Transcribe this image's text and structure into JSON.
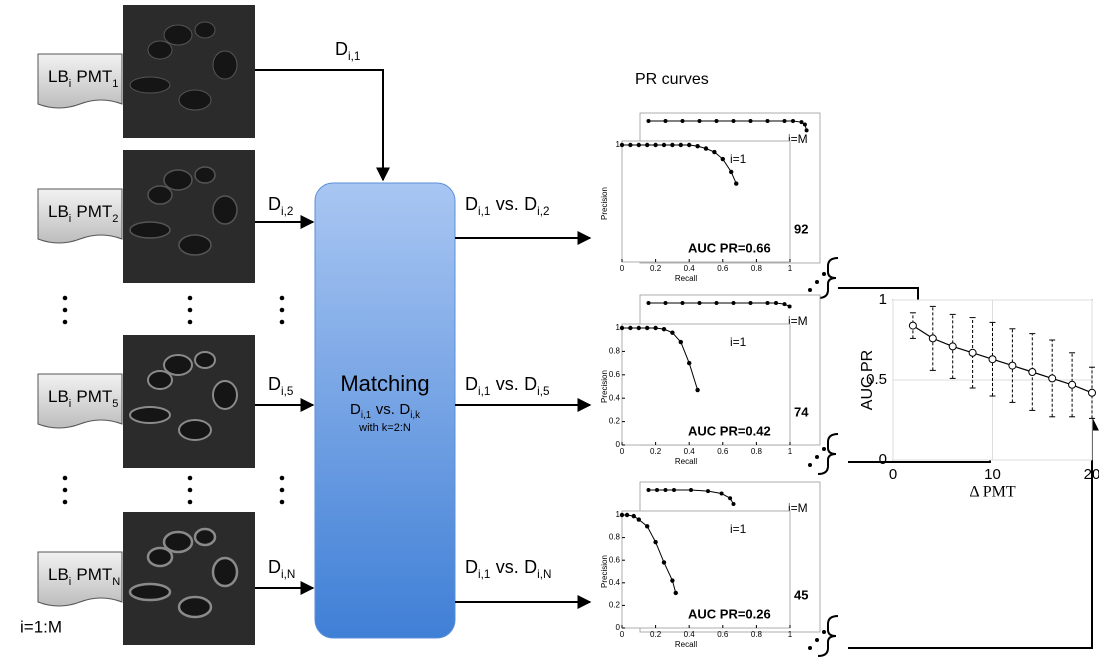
{
  "inputs": [
    {
      "label": "LB",
      "label_sub": "i",
      "pmt": "PMT",
      "pmt_sub": "1",
      "d": "D",
      "d_sub": "i,1"
    },
    {
      "label": "LB",
      "label_sub": "i",
      "pmt": "PMT",
      "pmt_sub": "2",
      "d": "D",
      "d_sub": "i,2"
    },
    {
      "label": "LB",
      "label_sub": "i",
      "pmt": "PMT",
      "pmt_sub": "5",
      "d": "D",
      "d_sub": "i,5"
    },
    {
      "label": "LB",
      "label_sub": "i",
      "pmt": "PMT",
      "pmt_sub": "N",
      "d": "D",
      "d_sub": "i,N"
    }
  ],
  "loop": "i=1:M",
  "matching": {
    "title": "Matching",
    "a": "D",
    "a_sub": "i,1",
    "vs": "vs.",
    "b": "D",
    "b_sub": "i,k",
    "note": "with k=2:N"
  },
  "comparisons": [
    {
      "a": "D",
      "a_sub": "i,1",
      "vs": "vs.",
      "b": "D",
      "b_sub": "i,2"
    },
    {
      "a": "D",
      "a_sub": "i,1",
      "vs": "vs.",
      "b": "D",
      "b_sub": "i,5"
    },
    {
      "a": "D",
      "a_sub": "i,1",
      "vs": "vs.",
      "b": "D",
      "b_sub": "i,N"
    }
  ],
  "pr_title": "PR curves",
  "pr_panels": [
    {
      "back_label": "i=M",
      "front_label": "i=1",
      "auc": "AUC PR=0.66",
      "count": "92",
      "xlabel": "Recall",
      "ylabel": "Precision",
      "xlim": [
        0,
        1
      ],
      "ylim": [
        0,
        1
      ],
      "xticks": [
        0,
        0.2,
        0.4,
        0.6,
        0.8,
        1
      ],
      "yticks": [
        1
      ],
      "recall": [
        0,
        0.05,
        0.1,
        0.15,
        0.2,
        0.25,
        0.3,
        0.35,
        0.4,
        0.45,
        0.5,
        0.55,
        0.6,
        0.65,
        0.68
      ],
      "precision": [
        1,
        1,
        1,
        1,
        1,
        1,
        1,
        1,
        1,
        0.99,
        0.97,
        0.94,
        0.88,
        0.77,
        0.67
      ],
      "back_recall": [
        0.05,
        0.15,
        0.25,
        0.35,
        0.45,
        0.55,
        0.65,
        0.75,
        0.85,
        0.9,
        0.95,
        0.97,
        0.98
      ],
      "back_precision": [
        1,
        1,
        1,
        1,
        1,
        1,
        1,
        1,
        1,
        1,
        0.99,
        0.97,
        0.92
      ]
    },
    {
      "back_label": "i=M",
      "front_label": "i=1",
      "auc": "AUC PR=0.42",
      "count": "74",
      "xlabel": "Recall",
      "ylabel": "Precision",
      "xlim": [
        0,
        1
      ],
      "ylim": [
        0,
        1
      ],
      "xticks": [
        0,
        0.2,
        0.4,
        0.6,
        0.8,
        1
      ],
      "yticks": [
        0,
        0.2,
        0.4,
        0.6,
        0.8,
        1
      ],
      "recall": [
        0,
        0.05,
        0.1,
        0.15,
        0.2,
        0.25,
        0.3,
        0.35,
        0.4,
        0.45
      ],
      "precision": [
        1,
        1,
        1,
        1,
        1,
        0.99,
        0.96,
        0.88,
        0.7,
        0.47
      ],
      "back_recall": [
        0.05,
        0.15,
        0.25,
        0.35,
        0.45,
        0.55,
        0.65,
        0.75,
        0.8,
        0.85,
        0.88
      ],
      "back_precision": [
        1,
        1,
        1,
        1,
        1,
        1,
        1,
        1,
        1,
        0.99,
        0.97
      ]
    },
    {
      "back_label": "i=M",
      "front_label": "i=1",
      "auc": "AUC PR=0.26",
      "count": "45",
      "xlabel": "Recall",
      "ylabel": "Precision",
      "xlim": [
        0,
        1
      ],
      "ylim": [
        0,
        1
      ],
      "xticks": [
        0,
        0.2,
        0.4,
        0.6,
        0.8,
        1
      ],
      "yticks": [
        0,
        0.2,
        0.4,
        0.6,
        0.8,
        1
      ],
      "recall": [
        0,
        0.03,
        0.07,
        0.1,
        0.15,
        0.2,
        0.25,
        0.3,
        0.32
      ],
      "precision": [
        1,
        1,
        0.99,
        0.96,
        0.9,
        0.76,
        0.58,
        0.42,
        0.31
      ],
      "back_recall": [
        0.05,
        0.1,
        0.15,
        0.2,
        0.3,
        0.4,
        0.48,
        0.53,
        0.55
      ],
      "back_precision": [
        1,
        1,
        1,
        1,
        1,
        0.99,
        0.97,
        0.93,
        0.88
      ]
    }
  ],
  "auc_chart": {
    "xlabel": "Δ PMT",
    "ylabel": "AUC PR",
    "xlim": [
      0,
      20
    ],
    "ylim": [
      0,
      1
    ],
    "xticks": [
      0,
      10,
      20
    ],
    "yticks": [
      0,
      0.5,
      1
    ],
    "grid": true,
    "x": [
      2,
      4,
      6,
      8,
      10,
      12,
      14,
      16,
      18,
      20
    ],
    "values": [
      0.84,
      0.76,
      0.71,
      0.67,
      0.63,
      0.59,
      0.55,
      0.51,
      0.47,
      0.42
    ],
    "errors": [
      0.08,
      0.2,
      0.2,
      0.22,
      0.23,
      0.23,
      0.24,
      0.24,
      0.2,
      0.16
    ]
  }
}
